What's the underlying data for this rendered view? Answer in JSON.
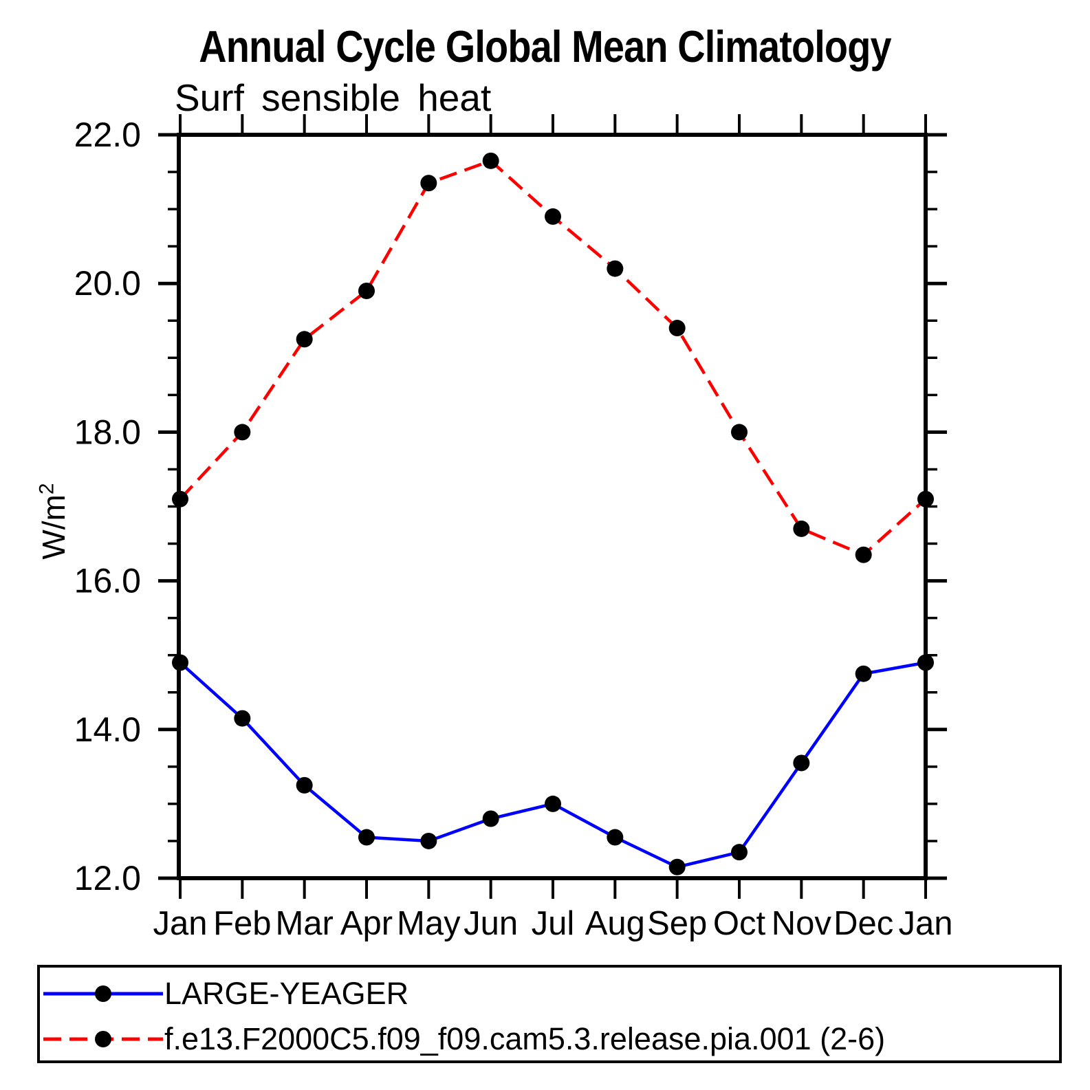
{
  "title": "Annual Cycle Global Mean Climatology",
  "subtitle": "Surf sensible heat",
  "ylabel": {
    "base": "W/m",
    "sup": "2"
  },
  "colors": {
    "series1": "#0000ff",
    "series2": "#ff0000",
    "marker": "#000000",
    "axis": "#000000"
  },
  "legend": {
    "items": [
      {
        "label": "LARGE-YEAGER",
        "color": "#0000ff",
        "style": "solid"
      },
      {
        "label": "f.e13.F2000C5.f09_f09.cam5.3.release.pia.001 (2-6)",
        "color": "#ff0000",
        "style": "dashed"
      }
    ]
  },
  "chart_data": {
    "type": "line",
    "categories": [
      "Jan",
      "Feb",
      "Mar",
      "Apr",
      "May",
      "Jun",
      "Jul",
      "Aug",
      "Sep",
      "Oct",
      "Nov",
      "Dec",
      "Jan"
    ],
    "series": [
      {
        "name": "LARGE-YEAGER",
        "color": "#0000ff",
        "dashed": false,
        "values": [
          14.9,
          14.15,
          13.25,
          12.55,
          12.5,
          12.8,
          13.0,
          12.55,
          12.15,
          12.35,
          13.55,
          14.75,
          14.9
        ]
      },
      {
        "name": "f.e13.F2000C5.f09_f09.cam5.3.release.pia.001 (2-6)",
        "color": "#ff0000",
        "dashed": true,
        "values": [
          17.1,
          18.0,
          19.25,
          19.9,
          21.35,
          21.65,
          20.9,
          20.2,
          19.4,
          18.0,
          16.7,
          16.35,
          17.1
        ]
      }
    ],
    "title": "Annual Cycle Global Mean Climatology",
    "subtitle": "Surf sensible heat",
    "xlabel": "",
    "ylabel": "W/m²",
    "ylim": [
      12.0,
      22.0
    ],
    "ytick_major": [
      12.0,
      14.0,
      16.0,
      18.0,
      20.0,
      22.0
    ],
    "ytick_labels": [
      "12.0",
      "14.0",
      "16.0",
      "18.0",
      "20.0",
      "22.0"
    ],
    "ytick_minor_step": 0.5,
    "grid": false,
    "marker": "filled-circle",
    "marker_color": "#000000",
    "legend_position": "bottom-left-box"
  }
}
